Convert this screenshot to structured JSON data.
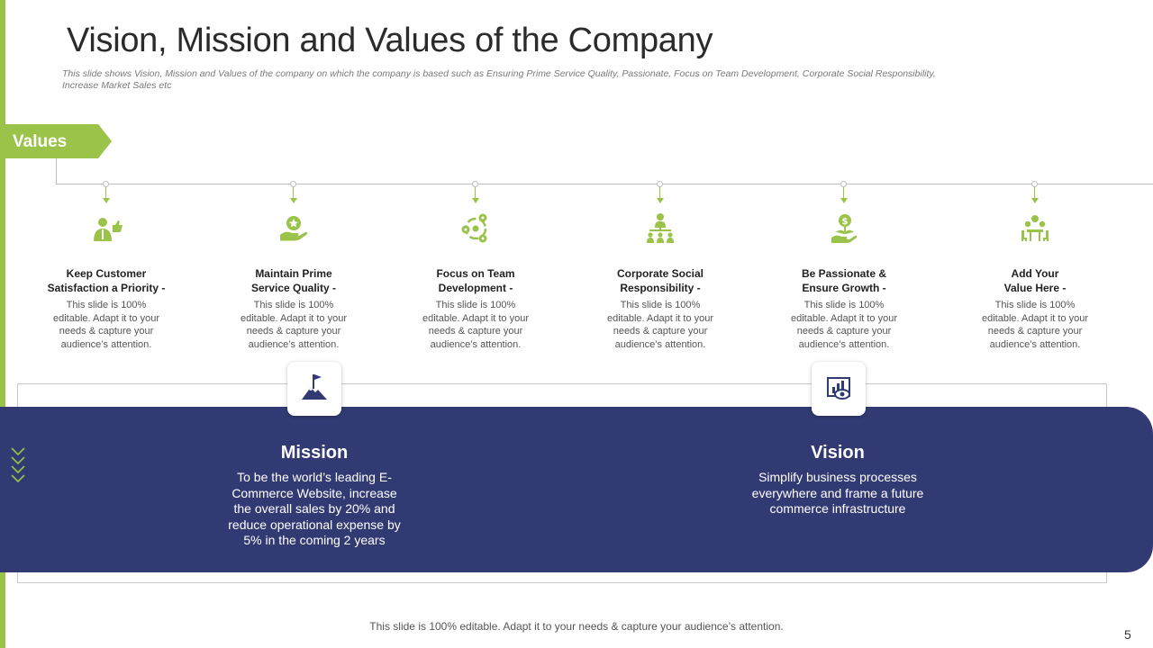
{
  "slide": {
    "title": "Vision, Mission and Values of the Company",
    "subtitle": "This slide shows Vision, Mission and Values of the company on which the company is based such as Ensuring Prime Service Quality, Passionate, Focus on Team Development, Corporate Social Responsibility, Increase Market Sales etc",
    "values_label": "Values",
    "footer": "This slide is 100% editable. Adapt it to your needs & capture your audience’s attention.",
    "page_number": "5"
  },
  "colors": {
    "accent": "#9bc34a",
    "band": "#323a73"
  },
  "values": [
    {
      "icon": "customer-satisfaction-icon",
      "line1": "Keep Customer",
      "line2": "Satisfaction  a Priority -",
      "desc": "This slide is 100% editable. Adapt it to your needs & capture your audience’s attention."
    },
    {
      "icon": "service-quality-icon",
      "line1": "Maintain Prime",
      "line2": "Service Quality -",
      "desc": "This slide is 100% editable. Adapt it to your needs & capture your audience’s attention."
    },
    {
      "icon": "team-development-icon",
      "line1": "Focus on Team",
      "line2": "Development -",
      "desc": "This slide is 100% editable. Adapt it to your needs & capture your audience’s attention."
    },
    {
      "icon": "social-responsibility-icon",
      "line1": "Corporate Social",
      "line2": "Responsibility -",
      "desc": "This slide is 100% editable. Adapt it to your needs & capture your audience’s attention."
    },
    {
      "icon": "growth-icon",
      "line1": "Be Passionate &",
      "line2": "Ensure Growth -",
      "desc": "This slide is 100% editable. Adapt it to your needs & capture your audience’s attention."
    },
    {
      "icon": "meeting-icon",
      "line1": "Add Your",
      "line2": "Value Here -",
      "desc": "This slide is 100% editable. Adapt it to your needs & capture your audience’s attention."
    }
  ],
  "mission": {
    "icon": "mountain-flag-icon",
    "title": "Mission",
    "text": "To be the world’s leading E-Commerce Website, increase the overall sales by 20% and reduce operational expense by 5% in the coming 2 years"
  },
  "vision": {
    "icon": "vision-board-icon",
    "title": "Vision",
    "text": "Simplify business processes everywhere and frame a future commerce infrastructure"
  }
}
